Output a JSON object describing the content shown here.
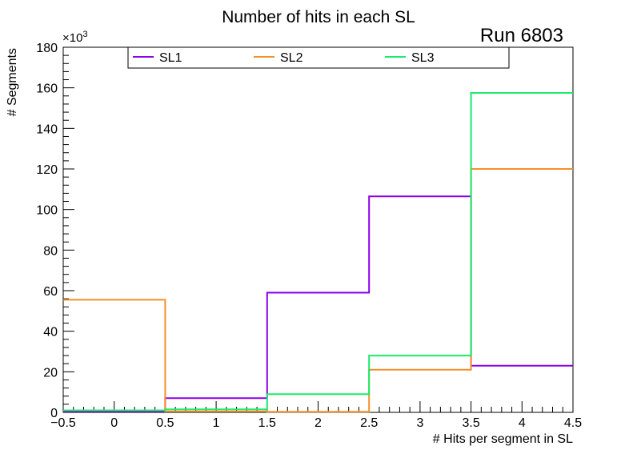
{
  "chart_data": {
    "type": "histogram",
    "title": "Number of hits in each SL",
    "run_label": "Run 6803",
    "xlabel": "# Hits per segment in SL",
    "ylabel": "# Segments",
    "y_multiplier_label": "×10",
    "y_multiplier_exponent": "3",
    "xlim": [
      -0.5,
      4.5
    ],
    "ylim": [
      0,
      180
    ],
    "x_ticks": [
      -0.5,
      0,
      0.5,
      1,
      1.5,
      2,
      2.5,
      3,
      3.5,
      4,
      4.5
    ],
    "x_tick_labels": [
      "−0.5",
      "0",
      "0.5",
      "1",
      "1.5",
      "2",
      "2.5",
      "3",
      "3.5",
      "4",
      "4.5"
    ],
    "y_ticks": [
      0,
      20,
      40,
      60,
      80,
      100,
      120,
      140,
      160,
      180
    ],
    "y_tick_labels": [
      "0",
      "20",
      "40",
      "60",
      "80",
      "100",
      "120",
      "140",
      "160",
      "180"
    ],
    "bin_edges": [
      -0.5,
      0.5,
      1.5,
      2.5,
      3.5,
      4.5
    ],
    "series": [
      {
        "name": "SL1",
        "color": "#8b00e8",
        "values": [
          0.5,
          7,
          59,
          106.5,
          23
        ]
      },
      {
        "name": "SL2",
        "color": "#f5902a",
        "values": [
          55.5,
          0.5,
          0.3,
          21,
          120
        ]
      },
      {
        "name": "SL3",
        "color": "#1aeb6a",
        "values": [
          1,
          1.5,
          9,
          28,
          157.5
        ]
      }
    ]
  }
}
